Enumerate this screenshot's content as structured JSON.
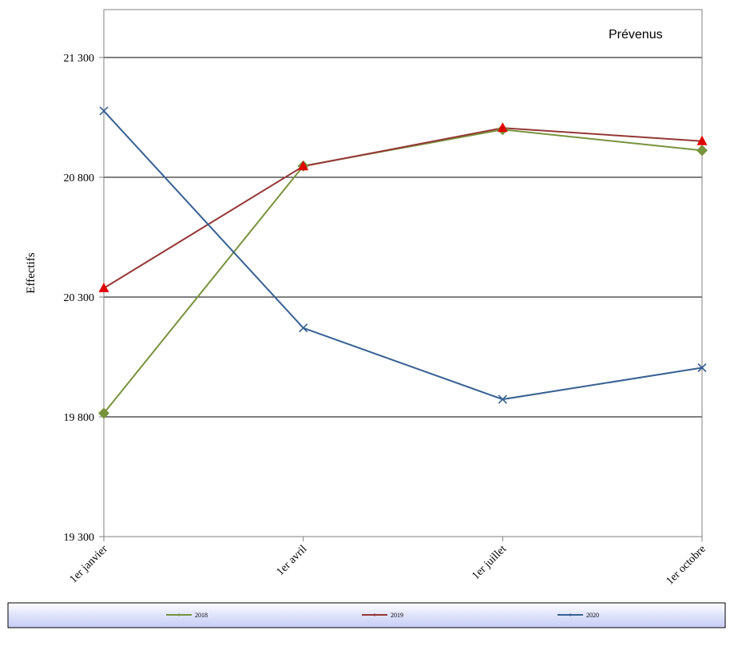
{
  "chart_data": {
    "type": "line",
    "annotation": "Prévenus",
    "ylabel": "Effectifs",
    "xlabel": "",
    "categories": [
      "1er janvier",
      "1er avril",
      "1er juillet",
      "1er octobre"
    ],
    "ylim": [
      19300,
      21500
    ],
    "yticks": [
      19300,
      19800,
      20300,
      20800,
      21300
    ],
    "ytick_labels": [
      "19 300",
      "19 800",
      "20 300",
      "20 800",
      "21 300"
    ],
    "grid": true,
    "legend_position": "bottom",
    "series": [
      {
        "name": "2018",
        "color": "#77933C",
        "marker": "diamond",
        "values": [
          19815,
          20847,
          20999,
          20912
        ]
      },
      {
        "name": "2019",
        "color": "#953735",
        "marker": "triangle",
        "values": [
          20337,
          20846,
          21006,
          20951
        ]
      },
      {
        "name": "2020",
        "color": "#376092",
        "marker": "x",
        "values": [
          21077,
          20171,
          19873,
          20005
        ]
      }
    ]
  }
}
